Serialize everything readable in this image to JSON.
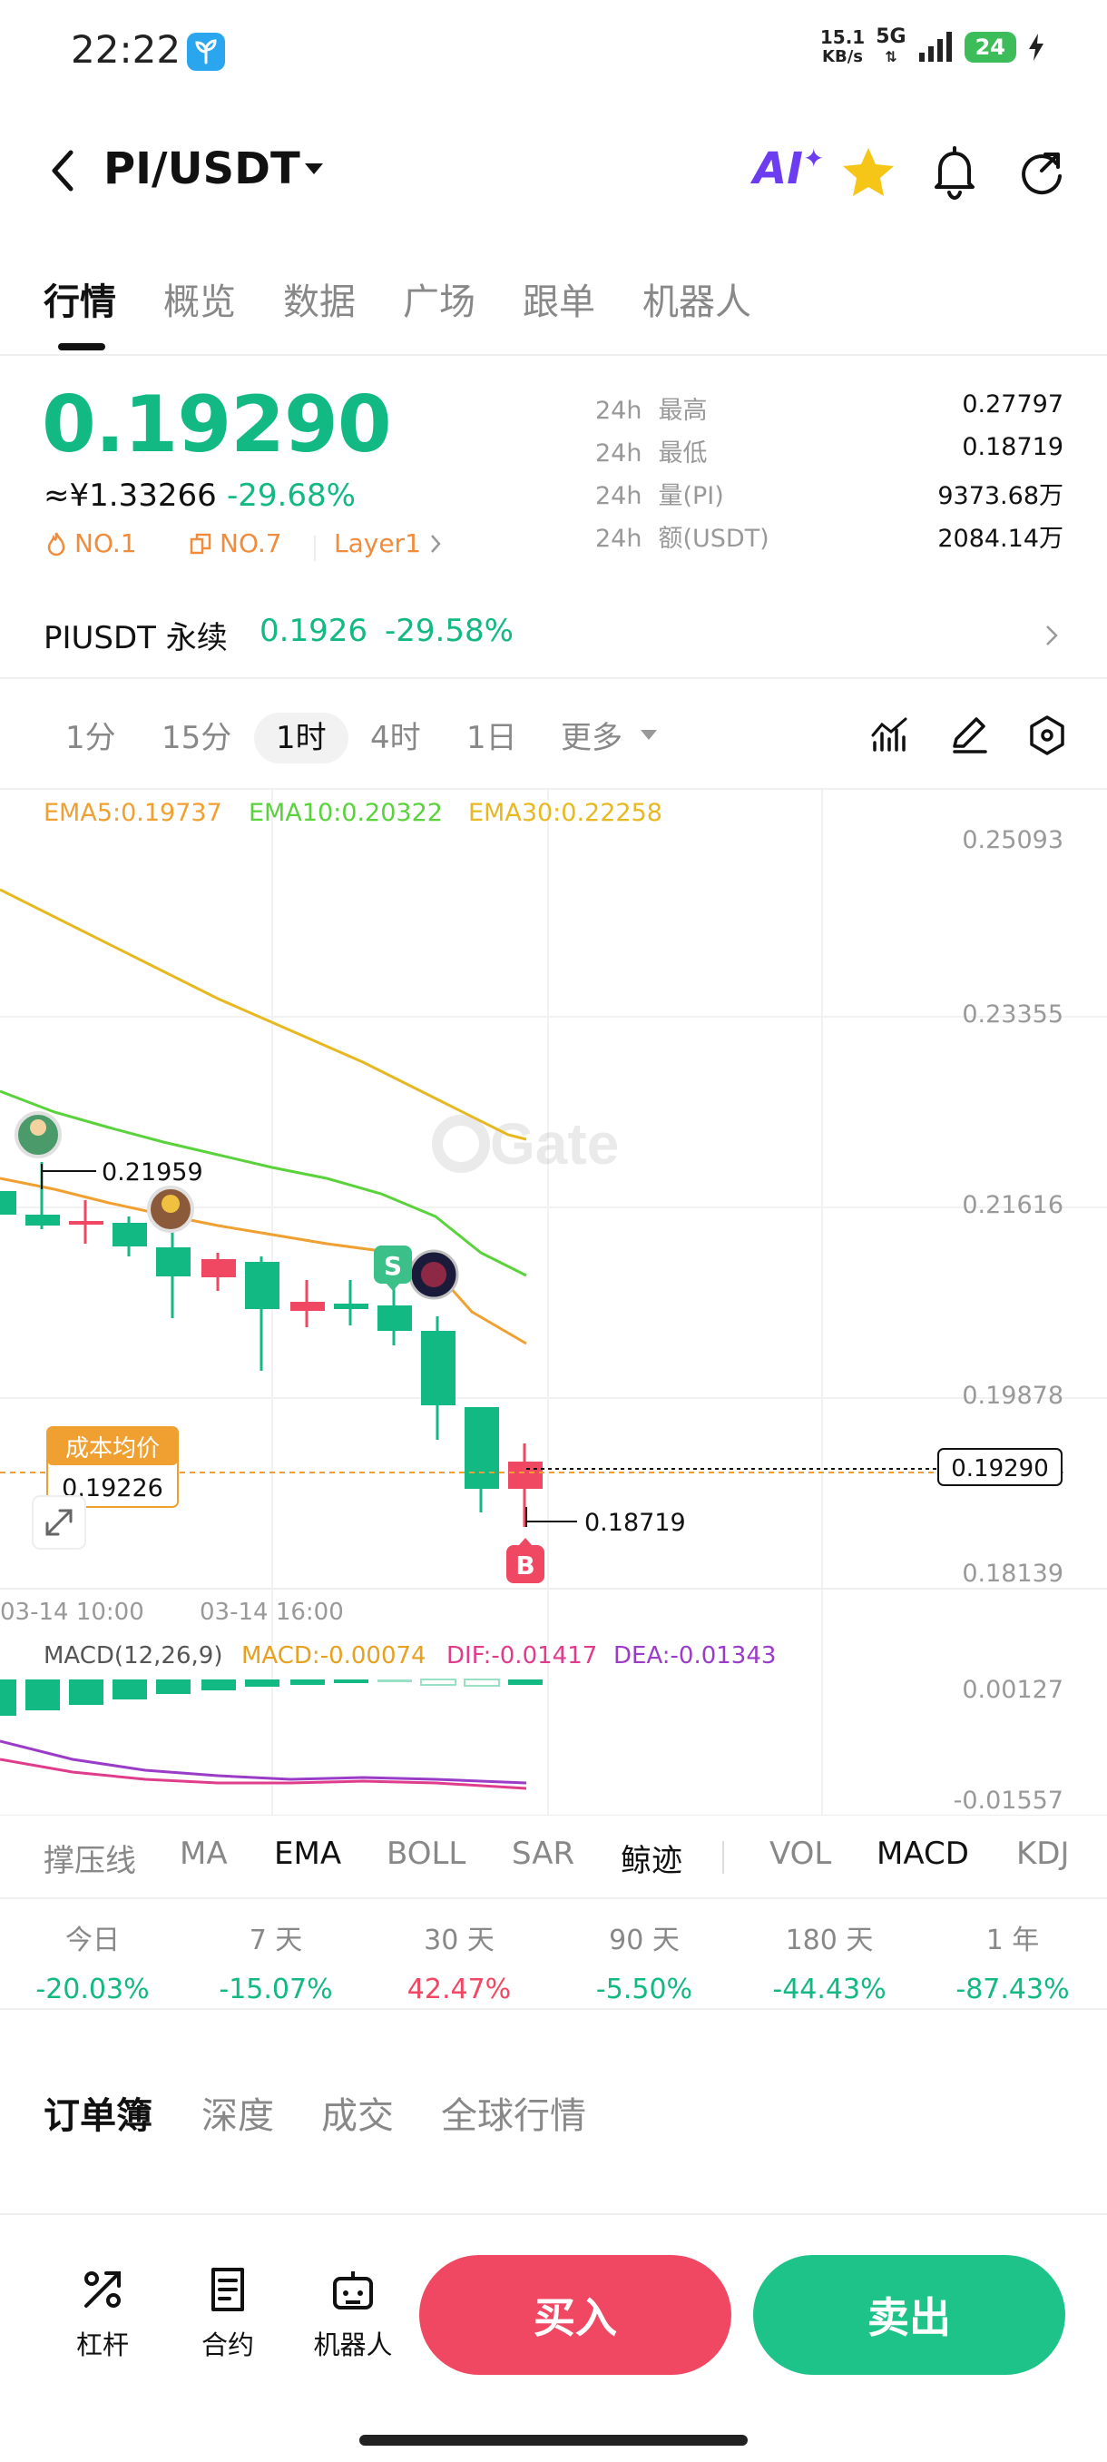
{
  "status_bar": {
    "time": "22:22",
    "net_speed_value": "15.1",
    "net_speed_unit": "KB/s",
    "network": "5G",
    "battery": "24",
    "app_icon": "leaf-app-icon"
  },
  "header": {
    "pair": "PI/USDT",
    "ai_label": "AI"
  },
  "tabs": [
    {
      "label": "行情"
    },
    {
      "label": "概览"
    },
    {
      "label": "数据"
    },
    {
      "label": "广场"
    },
    {
      "label": "跟单"
    },
    {
      "label": "机器人"
    }
  ],
  "price": {
    "last": "0.19290",
    "cny": "≈¥1.33266",
    "change": "-29.68%",
    "tags": [
      "NO.1",
      "NO.7",
      "Layer1"
    ],
    "stats": [
      {
        "period": "24h",
        "label": "最高",
        "value": "0.27797"
      },
      {
        "period": "24h",
        "label": "最低",
        "value": "0.18719"
      },
      {
        "period": "24h",
        "label": "量(PI)",
        "value": "9373.68万"
      },
      {
        "period": "24h",
        "label": "额(USDT)",
        "value": "2084.14万"
      }
    ]
  },
  "perpetual": {
    "name": "PIUSDT 永续",
    "price": "0.1926",
    "change": "-29.58%"
  },
  "intervals": [
    "1分",
    "15分",
    "1时",
    "4时",
    "1日",
    "更多"
  ],
  "chart": {
    "ema_labels": [
      "EMA5:0.19737",
      "EMA10:0.20322",
      "EMA30:0.22258"
    ],
    "ema_colors": [
      "#f0a030",
      "#5ad23c",
      "#e8b820"
    ],
    "y_ticks": [
      "0.25093",
      "0.23355",
      "0.21616",
      "0.19878",
      "0.18139"
    ],
    "x_ticks": [
      "03-14 10:00",
      "03-14 16:00"
    ],
    "high_marker": "0.21959",
    "low_marker": "0.18719",
    "current_price_tag": "0.19290",
    "cost_label": "成本均价",
    "cost_value": "0.19226",
    "watermark": "Gate",
    "markers": [
      "S",
      "B"
    ],
    "macd_label": "MACD(12,26,9)",
    "macd_value": "MACD:-0.00074",
    "dif_value": "DIF:-0.01417",
    "dea_value": "DEA:-0.01343",
    "macd_ticks": [
      "0.00127",
      "-0.01557"
    ],
    "up_color": "#13b983",
    "down_color": "#f04863"
  },
  "indicators": {
    "main": [
      "撑压线",
      "MA",
      "EMA",
      "BOLL",
      "SAR",
      "鲸迹"
    ],
    "sub": [
      "VOL",
      "MACD",
      "KDJ"
    ]
  },
  "performance": [
    {
      "label": "今日",
      "value": "-20.03%"
    },
    {
      "label": "7 天",
      "value": "-15.07%"
    },
    {
      "label": "30 天",
      "value": "42.47%"
    },
    {
      "label": "90 天",
      "value": "-5.50%"
    },
    {
      "label": "180 天",
      "value": "-44.43%"
    },
    {
      "label": "1 年",
      "value": "-87.43%"
    }
  ],
  "orderbook_tabs": [
    "订单簿",
    "深度",
    "成交",
    "全球行情"
  ],
  "bottom_bar": {
    "tools": [
      {
        "label": "杠杆"
      },
      {
        "label": "合约"
      },
      {
        "label": "机器人"
      }
    ],
    "buy": "买入",
    "sell": "卖出"
  }
}
